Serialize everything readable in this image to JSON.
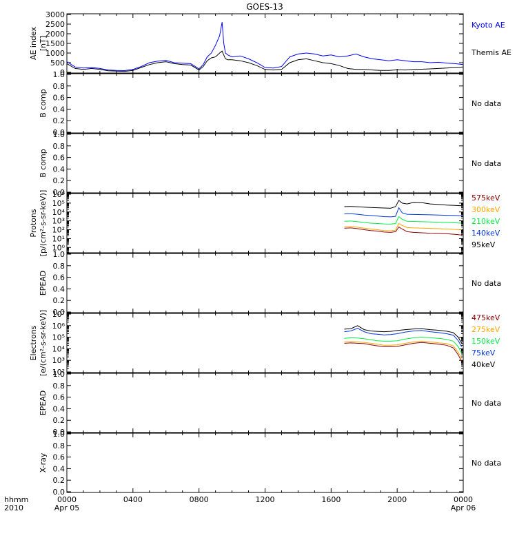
{
  "title": "GOES-13",
  "x_axis": {
    "label_lines": [
      "hhmm",
      "2010"
    ],
    "ticks": [
      {
        "hour": 0,
        "label": "0000",
        "sub": "Apr 05"
      },
      {
        "hour": 4,
        "label": "0400",
        "sub": ""
      },
      {
        "hour": 8,
        "label": "0800",
        "sub": ""
      },
      {
        "hour": 12,
        "label": "1200",
        "sub": ""
      },
      {
        "hour": 16,
        "label": "1600",
        "sub": ""
      },
      {
        "hour": 20,
        "label": "2000",
        "sub": ""
      },
      {
        "hour": 24,
        "label": "0000",
        "sub": "Apr 06"
      }
    ]
  },
  "chart_data": [
    {
      "id": "ae",
      "type": "line",
      "ylabel_lines": [
        "AE index",
        "[nT]"
      ],
      "ylim": [
        0,
        3000
      ],
      "yscale": "linear",
      "yticks": [
        0,
        500,
        1000,
        1500,
        2000,
        2500,
        3000
      ],
      "ytick_labels": [
        "0",
        "500",
        "1000",
        "1500",
        "2000",
        "2500",
        "3000"
      ],
      "x_hours": [
        0,
        0.5,
        1,
        1.5,
        2,
        2.5,
        3,
        3.5,
        4,
        4.5,
        5,
        5.5,
        6,
        6.5,
        7,
        7.5,
        8,
        8.25,
        8.5,
        8.75,
        9,
        9.25,
        9.4,
        9.5,
        9.6,
        9.75,
        10,
        10.5,
        11,
        11.5,
        12,
        12.5,
        13,
        13.5,
        14,
        14.5,
        15,
        15.5,
        16,
        16.5,
        17,
        17.5,
        18,
        18.5,
        19,
        19.5,
        20,
        20.5,
        21,
        21.5,
        22,
        22.5,
        23,
        23.5,
        24
      ],
      "series": [
        {
          "name": "Kyoto AE",
          "color": "#0000ff",
          "values": [
            550,
            280,
            220,
            250,
            200,
            120,
            100,
            90,
            150,
            300,
            500,
            580,
            620,
            500,
            470,
            450,
            180,
            400,
            800,
            1000,
            1400,
            1900,
            2600,
            1500,
            1000,
            900,
            800,
            850,
            700,
            500,
            250,
            220,
            300,
            800,
            950,
            1000,
            950,
            850,
            900,
            800,
            850,
            950,
            800,
            700,
            650,
            600,
            650,
            600,
            550,
            550,
            500,
            520,
            480,
            450,
            400
          ]
        },
        {
          "name": "Themis AE",
          "color": "#000000",
          "values": [
            450,
            200,
            150,
            200,
            150,
            80,
            60,
            50,
            100,
            250,
            400,
            500,
            550,
            450,
            400,
            380,
            120,
            300,
            600,
            750,
            800,
            1000,
            1100,
            900,
            700,
            650,
            650,
            600,
            500,
            350,
            150,
            120,
            150,
            500,
            650,
            700,
            600,
            500,
            450,
            350,
            200,
            150,
            150,
            120,
            100,
            100,
            130,
            120,
            150,
            160,
            180,
            200,
            220,
            250,
            280
          ]
        }
      ]
    },
    {
      "id": "bcomp1",
      "type": "line",
      "ylabel_lines": [
        "B comp"
      ],
      "ylim": [
        0.0,
        1.0
      ],
      "yscale": "linear",
      "yticks": [
        0,
        0.2,
        0.4,
        0.6,
        0.8,
        1.0
      ],
      "ytick_labels": [
        "0.0",
        "0.2",
        "0.4",
        "0.6",
        "0.8",
        "1.0"
      ],
      "series": [],
      "status": "No data"
    },
    {
      "id": "bcomp2",
      "type": "line",
      "ylabel_lines": [
        "B comp"
      ],
      "ylim": [
        0.0,
        1.0
      ],
      "yscale": "linear",
      "yticks": [
        0,
        0.2,
        0.4,
        0.6,
        0.8,
        1.0
      ],
      "ytick_labels": [
        "0.0",
        "0.2",
        "0.4",
        "0.6",
        "0.8",
        "1.0"
      ],
      "series": [],
      "status": "No data"
    },
    {
      "id": "protons",
      "type": "line",
      "ylabel_lines": [
        "Protons",
        "[p/(cm²-s-sr-keV)]"
      ],
      "ylim": [
        0.3,
        1000000
      ],
      "yscale": "log",
      "yticks": [
        1,
        10,
        100,
        1000,
        10000,
        100000,
        1000000
      ],
      "ytick_labels": [
        "10⁰",
        "10¹",
        "10²",
        "10³",
        "10⁴",
        "10⁵",
        "10⁶"
      ],
      "x_hours": [
        16.8,
        17.2,
        17.6,
        18.0,
        18.4,
        18.8,
        19.2,
        19.6,
        19.9,
        20.1,
        20.3,
        20.6,
        21.0,
        21.5,
        22.0,
        22.5,
        23.0,
        23.5,
        23.9
      ],
      "series": [
        {
          "name": "575keV",
          "color": "#8b0000",
          "values": [
            150,
            160,
            130,
            100,
            80,
            70,
            55,
            50,
            60,
            200,
            120,
            60,
            50,
            45,
            40,
            38,
            35,
            30,
            25
          ]
        },
        {
          "name": "300keV",
          "color": "#ffa500",
          "values": [
            220,
            230,
            190,
            150,
            120,
            100,
            80,
            75,
            90,
            500,
            300,
            180,
            160,
            150,
            140,
            130,
            120,
            110,
            100
          ]
        },
        {
          "name": "210keV",
          "color": "#00ee44",
          "values": [
            900,
            950,
            800,
            650,
            550,
            500,
            450,
            430,
            500,
            3000,
            1500,
            900,
            850,
            800,
            750,
            700,
            650,
            600,
            550
          ]
        },
        {
          "name": "140keV",
          "color": "#0033dd",
          "values": [
            6000,
            6500,
            5500,
            4500,
            4000,
            3500,
            3000,
            2800,
            3200,
            30000,
            8000,
            5500,
            5200,
            5000,
            4800,
            4500,
            4200,
            4000,
            3800
          ]
        },
        {
          "name": "95keV",
          "color": "#000000",
          "values": [
            40000,
            42000,
            38000,
            35000,
            32000,
            30000,
            28000,
            26000,
            40000,
            200000,
            100000,
            80000,
            120000,
            110000,
            80000,
            70000,
            60000,
            55000,
            50000
          ]
        }
      ]
    },
    {
      "id": "epead1",
      "type": "line",
      "ylabel_lines": [
        "EPEAD"
      ],
      "ylim": [
        0.0,
        1.0
      ],
      "yscale": "linear",
      "yticks": [
        0,
        0.2,
        0.4,
        0.6,
        0.8,
        1.0
      ],
      "ytick_labels": [
        "0.0",
        "0.2",
        "0.4",
        "0.6",
        "0.8",
        "1.0"
      ],
      "series": [],
      "status": "No data"
    },
    {
      "id": "electrons",
      "type": "line",
      "ylabel_lines": [
        "Electrons",
        "[e/(cm²-s-sr-keV)]"
      ],
      "ylim": [
        100,
        10000000
      ],
      "yscale": "log",
      "yticks": [
        100,
        1000,
        10000,
        100000,
        1000000,
        10000000
      ],
      "ytick_labels": [
        "10²",
        "10³",
        "10⁴",
        "10⁵",
        "10⁶",
        "10⁷"
      ],
      "x_hours": [
        16.8,
        17.2,
        17.6,
        18.0,
        18.4,
        18.8,
        19.2,
        19.6,
        20.0,
        20.5,
        21.0,
        21.5,
        22.0,
        22.5,
        23.0,
        23.4,
        23.7,
        23.9
      ],
      "series": [
        {
          "name": "475keV",
          "color": "#8b0000",
          "values": [
            30000,
            32000,
            30000,
            28000,
            22000,
            18000,
            15000,
            15000,
            16000,
            22000,
            30000,
            35000,
            30000,
            25000,
            20000,
            12000,
            3000,
            800
          ]
        },
        {
          "name": "275keV",
          "color": "#ffa500",
          "values": [
            40000,
            42000,
            40000,
            36000,
            30000,
            25000,
            20000,
            20000,
            22000,
            30000,
            40000,
            45000,
            40000,
            33000,
            28000,
            18000,
            5000,
            1500
          ]
        },
        {
          "name": "150keV",
          "color": "#00ee44",
          "values": [
            80000,
            90000,
            85000,
            75000,
            60000,
            50000,
            45000,
            45000,
            50000,
            70000,
            90000,
            100000,
            90000,
            80000,
            65000,
            45000,
            15000,
            4000
          ]
        },
        {
          "name": "75keV",
          "color": "#0033dd",
          "values": [
            300000,
            350000,
            600000,
            300000,
            200000,
            180000,
            160000,
            170000,
            200000,
            280000,
            350000,
            380000,
            300000,
            250000,
            200000,
            150000,
            50000,
            15000
          ]
        },
        {
          "name": "40keV",
          "color": "#000000",
          "values": [
            500000,
            550000,
            1000000,
            450000,
            350000,
            320000,
            300000,
            320000,
            380000,
            450000,
            520000,
            550000,
            450000,
            400000,
            330000,
            250000,
            100000,
            30000
          ]
        }
      ]
    },
    {
      "id": "epead2",
      "type": "line",
      "ylabel_lines": [
        "EPEAD"
      ],
      "ylim": [
        0.0,
        1.0
      ],
      "yscale": "linear",
      "yticks": [
        0,
        0.2,
        0.4,
        0.6,
        0.8,
        1.0
      ],
      "ytick_labels": [
        "0.0",
        "0.2",
        "0.4",
        "0.6",
        "0.8",
        "1.0"
      ],
      "series": [],
      "status": "No data"
    },
    {
      "id": "xray",
      "type": "line",
      "ylabel_lines": [
        "X-ray"
      ],
      "ylim": [
        0.0,
        1.0
      ],
      "yscale": "linear",
      "yticks": [
        0,
        0.2,
        0.4,
        0.6,
        0.8,
        1.0
      ],
      "ytick_labels": [
        "0.0",
        "0.2",
        "0.4",
        "0.6",
        "0.8",
        "1.0"
      ],
      "series": [],
      "status": "No data"
    }
  ]
}
